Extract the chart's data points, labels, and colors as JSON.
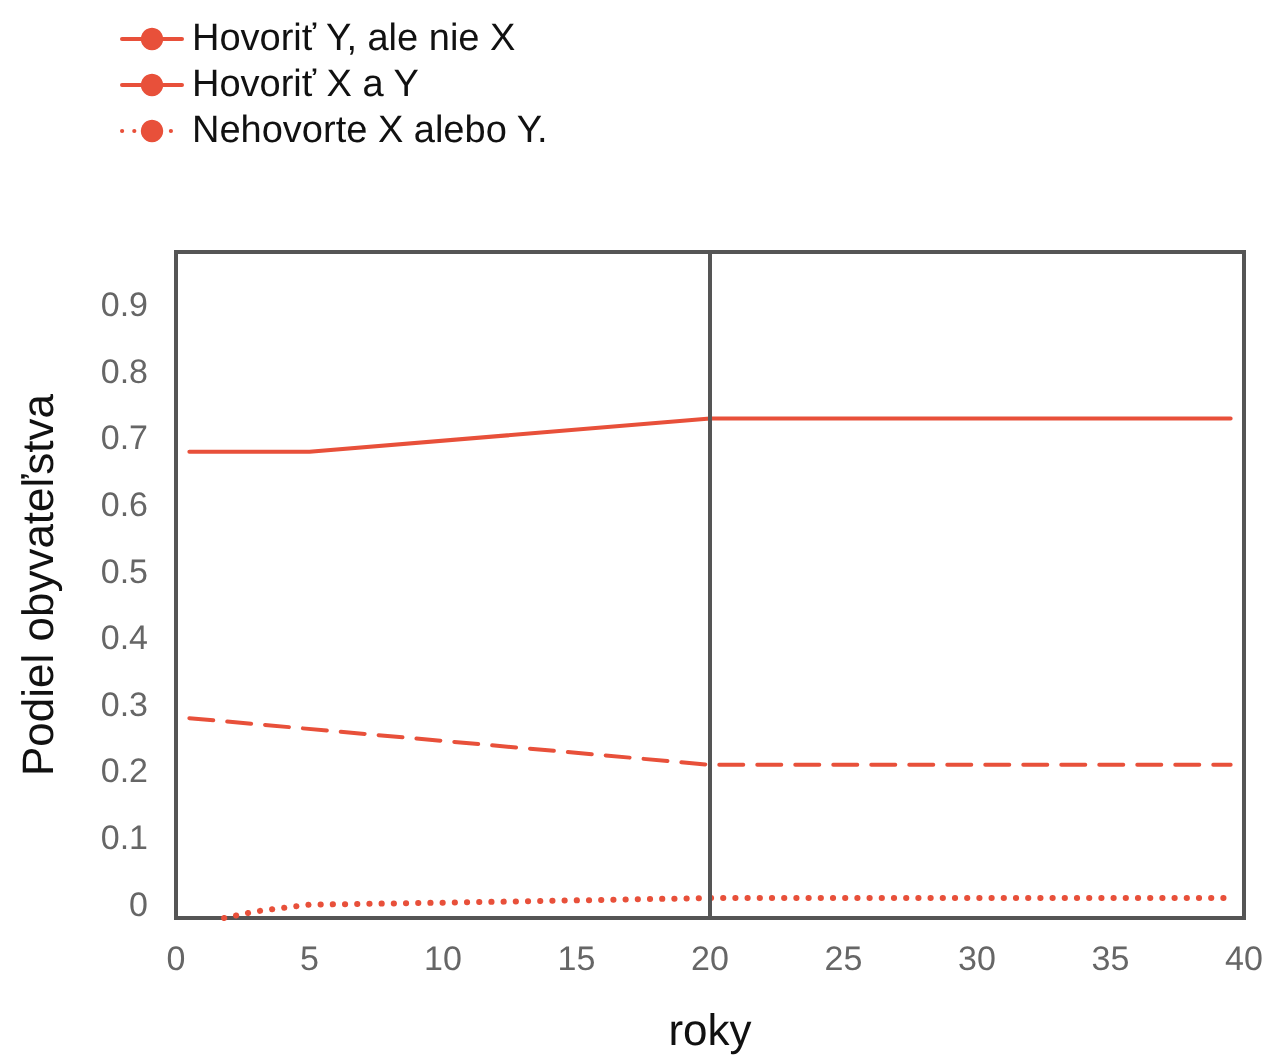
{
  "chart_data": {
    "type": "line",
    "xlabel": "roky",
    "ylabel": "Podiel obyvateľstva",
    "xlim": [
      0,
      40
    ],
    "xticks": [
      0,
      5,
      10,
      15,
      20,
      25,
      30,
      35,
      40
    ],
    "ylim": [
      -0.02,
      0.98
    ],
    "yticks": [
      0,
      0.1,
      0.2,
      0.3,
      0.4,
      0.5,
      0.6,
      0.7,
      0.8,
      0.9
    ],
    "grid": false,
    "legend": "top left",
    "marker": "none",
    "ref_lines": [
      {
        "axis": "x",
        "value": 20,
        "color": "#555555",
        "line_style": "solid"
      }
    ],
    "series": [
      {
        "name": "Hovoriť Y, ale nie X",
        "color": "#e8503a",
        "line_style": "solid",
        "x": [
          0.5,
          5,
          20,
          39.5
        ],
        "values": [
          0.68,
          0.68,
          0.73,
          0.73
        ]
      },
      {
        "name": "Hovoriť X a Y",
        "color": "#e8503a",
        "line_style": "dashed",
        "x": [
          0.5,
          20,
          39.5
        ],
        "values": [
          0.28,
          0.21,
          0.21
        ]
      },
      {
        "name": "Nehovorte X alebo Y.",
        "color": "#e8503a",
        "line_style": "dotted",
        "x": [
          1.8,
          3,
          5,
          10,
          20,
          39.5
        ],
        "values": [
          -0.02,
          -0.01,
          0.0,
          0.003,
          0.01,
          0.01
        ]
      }
    ]
  }
}
